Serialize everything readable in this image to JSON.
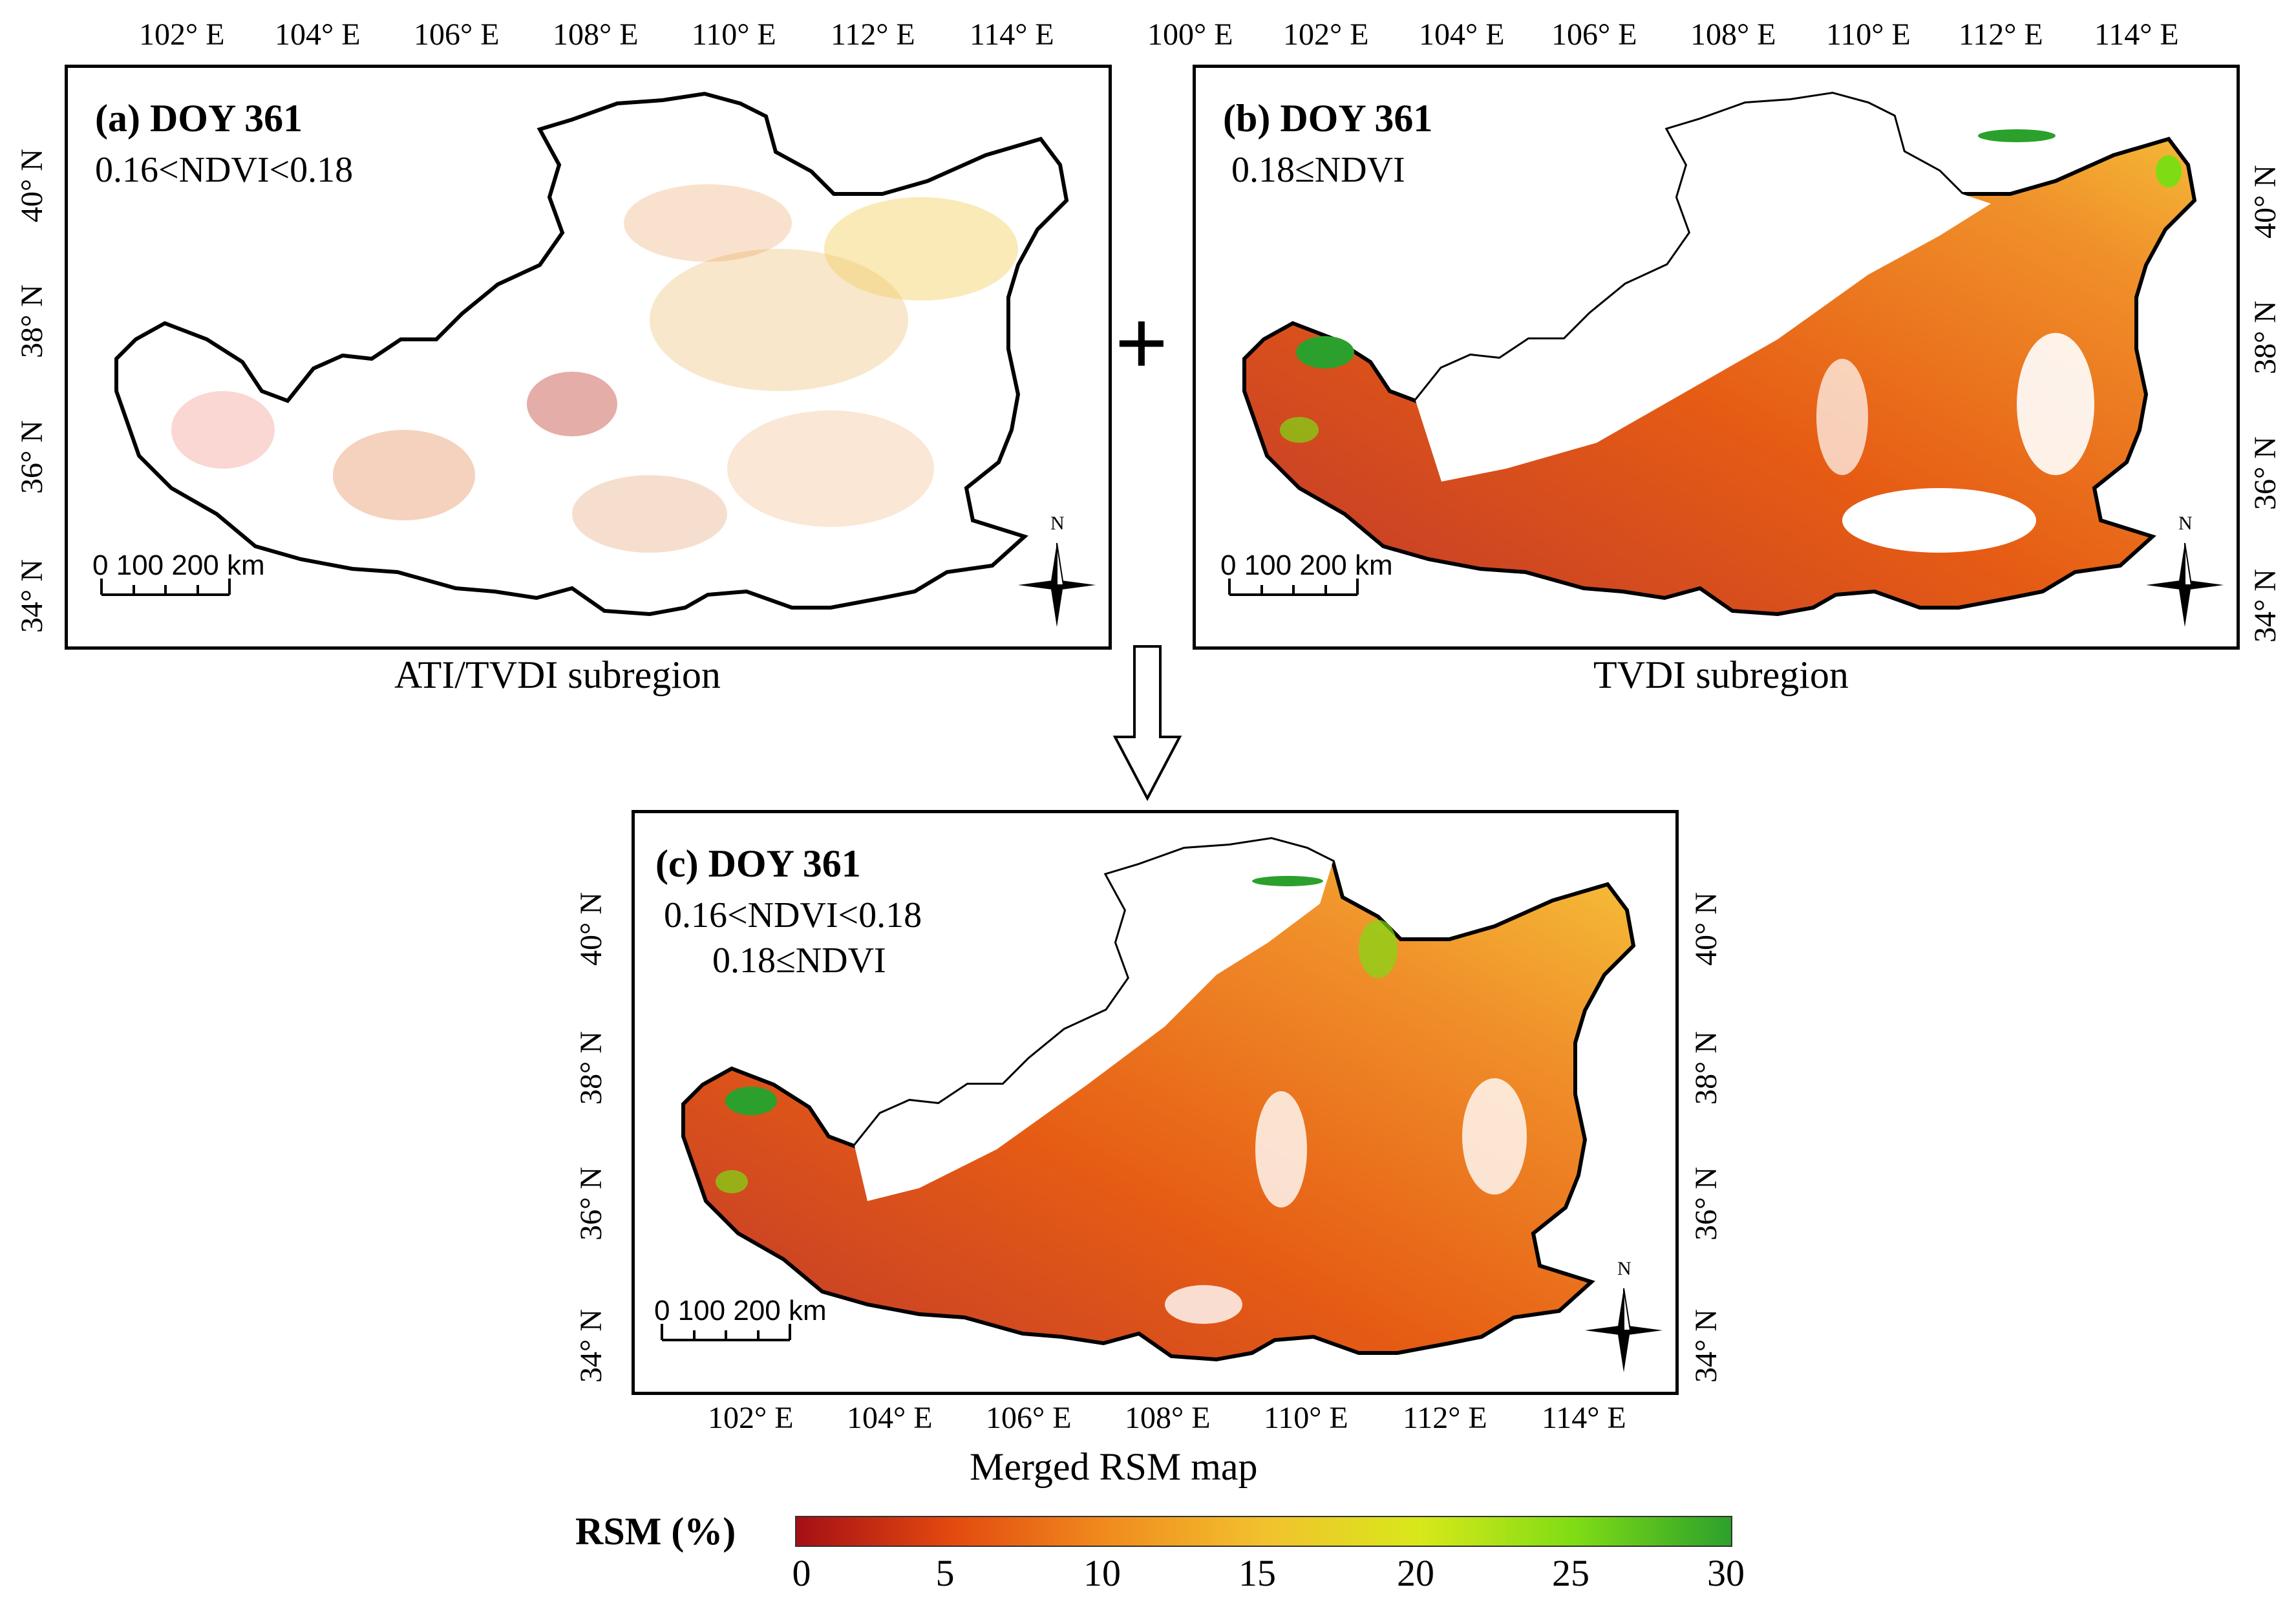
{
  "panels": {
    "a": {
      "title": "(a) DOY 361",
      "note1": "0.16<NDVI<0.18",
      "caption": "ATI/TVDI subregion"
    },
    "b": {
      "title": "(b) DOY 361",
      "note1": "0.18≤NDVI",
      "caption": "TVDI subregion"
    },
    "c": {
      "title": "(c) DOY 361",
      "note1": "0.16<NDVI<0.18",
      "note2": "0.18≤NDVI",
      "caption": "Merged RSM map"
    }
  },
  "ticks": {
    "a_top": [
      "102° E",
      "104° E",
      "106° E",
      "108° E",
      "110° E",
      "112° E",
      "114° E"
    ],
    "a_left": [
      "40° N",
      "38° N",
      "36° N",
      "34° N"
    ],
    "b_top": [
      "100° E",
      "102° E",
      "104° E",
      "106° E",
      "108° E",
      "110° E",
      "112° E",
      "114° E"
    ],
    "b_right": [
      "40° N",
      "38° N",
      "36° N",
      "34° N"
    ],
    "c_bottom": [
      "102° E",
      "104° E",
      "106° E",
      "108° E",
      "110° E",
      "112° E",
      "114° E"
    ],
    "c_left": [
      "40° N",
      "38° N",
      "36° N",
      "34° N"
    ],
    "c_right": [
      "40° N",
      "38° N",
      "36° N",
      "34° N"
    ]
  },
  "scalebar": {
    "label": "0   100 200  km"
  },
  "north": "N",
  "operators": {
    "plus": "+"
  },
  "legend": {
    "title": "RSM (%)",
    "ticks": [
      "0",
      "5",
      "10",
      "15",
      "20",
      "25",
      "30"
    ],
    "colors": [
      "#a50f15",
      "#e34a0f",
      "#f08c1e",
      "#f2c12e",
      "#d8e81a",
      "#7fdc14",
      "#2ca02c"
    ]
  }
}
